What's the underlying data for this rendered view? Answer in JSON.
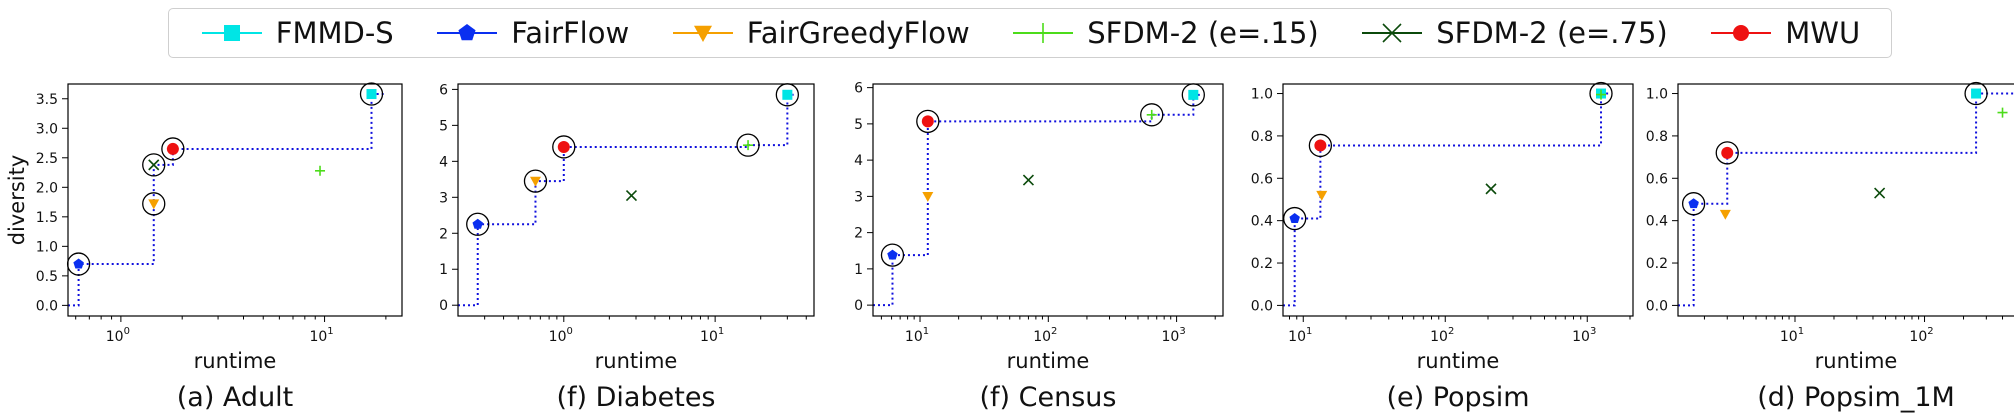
{
  "legend": {
    "items": [
      {
        "label": "FMMD-S",
        "color": "#00e5e5",
        "marker": "square",
        "icon": "cyan-square-marker-icon"
      },
      {
        "label": "FairFlow",
        "color": "#0a2ff0",
        "marker": "pentagon",
        "icon": "blue-pentagon-marker-icon"
      },
      {
        "label": "FairGreedyFlow",
        "color": "#f5a000",
        "marker": "triangle-down",
        "icon": "orange-triangle-marker-icon"
      },
      {
        "label": "SFDM-2 (e=.15)",
        "color": "#4cdc1a",
        "marker": "plus",
        "icon": "green-plus-marker-icon"
      },
      {
        "label": "SFDM-2 (e=.75)",
        "color": "#0b4a0b",
        "marker": "x",
        "icon": "dark-green-x-marker-icon"
      },
      {
        "label": "MWU",
        "color": "#ee1111",
        "marker": "circle",
        "icon": "red-circle-marker-icon"
      }
    ]
  },
  "colors": {
    "pareto_line": "#1010dd",
    "highlight_ring": "#000000"
  },
  "chart_data": [
    {
      "type": "scatter",
      "title": "(a) Adult",
      "xlabel": "runtime",
      "ylabel": "diversity",
      "xscale": "log",
      "xlim": [
        0.55,
        24
      ],
      "ylim": [
        -0.18,
        3.75
      ],
      "xticks": [
        {
          "v": 1,
          "label": "10^0"
        },
        {
          "v": 10,
          "label": "10^1"
        }
      ],
      "yticks": [
        {
          "v": 0,
          "label": "0.0"
        },
        {
          "v": 0.5,
          "label": "0.5"
        },
        {
          "v": 1.0,
          "label": "1.0"
        },
        {
          "v": 1.5,
          "label": "1.5"
        },
        {
          "v": 2.0,
          "label": "2.0"
        },
        {
          "v": 2.5,
          "label": "2.5"
        },
        {
          "v": 3.0,
          "label": "3.0"
        },
        {
          "v": 3.5,
          "label": "3.5"
        }
      ],
      "series": [
        {
          "name": "FMMD-S",
          "points": [
            [
              17,
              3.58
            ]
          ]
        },
        {
          "name": "FairFlow",
          "points": [
            [
              0.62,
              0.7
            ]
          ]
        },
        {
          "name": "FairGreedyFlow",
          "points": [
            [
              1.45,
              1.72
            ]
          ]
        },
        {
          "name": "SFDM-2 (e=.15)",
          "points": [
            [
              9.5,
              2.28
            ]
          ]
        },
        {
          "name": "SFDM-2 (e=.75)",
          "points": [
            [
              1.45,
              2.38
            ]
          ]
        },
        {
          "name": "MWU",
          "points": [
            [
              1.8,
              2.65
            ]
          ]
        }
      ],
      "pareto": [
        [
          0.55,
          0
        ],
        [
          0.62,
          0
        ],
        [
          0.62,
          0.7
        ],
        [
          1.45,
          0.7
        ],
        [
          1.45,
          1.72
        ],
        [
          1.45,
          2.38
        ],
        [
          1.8,
          2.38
        ],
        [
          1.8,
          2.65
        ],
        [
          17,
          2.65
        ],
        [
          17,
          3.58
        ],
        [
          19.5,
          3.58
        ]
      ],
      "circled": [
        [
          0.62,
          0.7
        ],
        [
          1.45,
          1.72
        ],
        [
          1.45,
          2.38
        ],
        [
          1.8,
          2.65
        ],
        [
          17,
          3.58
        ]
      ]
    },
    {
      "type": "scatter",
      "title": "(f) Diabetes",
      "xlabel": "runtime",
      "ylabel": "",
      "xscale": "log",
      "xlim": [
        0.2,
        45
      ],
      "ylim": [
        -0.3,
        6.15
      ],
      "xticks": [
        {
          "v": 1,
          "label": "10^0"
        },
        {
          "v": 10,
          "label": "10^1"
        }
      ],
      "yticks": [
        {
          "v": 0,
          "label": "0"
        },
        {
          "v": 1,
          "label": "1"
        },
        {
          "v": 2,
          "label": "2"
        },
        {
          "v": 3,
          "label": "3"
        },
        {
          "v": 4,
          "label": "4"
        },
        {
          "v": 5,
          "label": "5"
        },
        {
          "v": 6,
          "label": "6"
        }
      ],
      "series": [
        {
          "name": "FMMD-S",
          "points": [
            [
              30,
              5.85
            ]
          ]
        },
        {
          "name": "FairFlow",
          "points": [
            [
              0.27,
              2.25
            ]
          ]
        },
        {
          "name": "FairGreedyFlow",
          "points": [
            [
              0.65,
              3.45
            ]
          ]
        },
        {
          "name": "SFDM-2 (e=.15)",
          "points": [
            [
              16.5,
              4.45
            ]
          ]
        },
        {
          "name": "SFDM-2 (e=.75)",
          "points": [
            [
              2.8,
              3.05
            ]
          ]
        },
        {
          "name": "MWU",
          "points": [
            [
              1.0,
              4.4
            ]
          ]
        }
      ],
      "pareto": [
        [
          0.2,
          0
        ],
        [
          0.27,
          0
        ],
        [
          0.27,
          2.25
        ],
        [
          0.65,
          2.25
        ],
        [
          0.65,
          3.45
        ],
        [
          1.0,
          3.45
        ],
        [
          1.0,
          4.4
        ],
        [
          16.5,
          4.4
        ],
        [
          16.5,
          4.45
        ],
        [
          30,
          4.45
        ],
        [
          30,
          5.85
        ],
        [
          33,
          5.85
        ]
      ],
      "circled": [
        [
          0.27,
          2.25
        ],
        [
          0.65,
          3.45
        ],
        [
          1.0,
          4.4
        ],
        [
          16.5,
          4.45
        ],
        [
          30,
          5.85
        ]
      ]
    },
    {
      "type": "scatter",
      "title": "(f) Census",
      "xlabel": "runtime",
      "ylabel": "",
      "xscale": "log",
      "xlim": [
        4.3,
        2300
      ],
      "ylim": [
        -0.3,
        6.1
      ],
      "xticks": [
        {
          "v": 10,
          "label": "10^1"
        },
        {
          "v": 100,
          "label": "10^2"
        },
        {
          "v": 1000,
          "label": "10^3"
        }
      ],
      "yticks": [
        {
          "v": 0,
          "label": "0"
        },
        {
          "v": 1,
          "label": "1"
        },
        {
          "v": 2,
          "label": "2"
        },
        {
          "v": 3,
          "label": "3"
        },
        {
          "v": 4,
          "label": "4"
        },
        {
          "v": 5,
          "label": "5"
        },
        {
          "v": 6,
          "label": "6"
        }
      ],
      "series": [
        {
          "name": "FMMD-S",
          "points": [
            [
              1350,
              5.8
            ]
          ]
        },
        {
          "name": "FairFlow",
          "points": [
            [
              6.1,
              1.38
            ]
          ]
        },
        {
          "name": "FairGreedyFlow",
          "points": [
            [
              11.5,
              3.0
            ]
          ]
        },
        {
          "name": "SFDM-2 (e=.15)",
          "points": [
            [
              640,
              5.25
            ]
          ]
        },
        {
          "name": "SFDM-2 (e=.75)",
          "points": [
            [
              70,
              3.45
            ]
          ]
        },
        {
          "name": "MWU",
          "points": [
            [
              11.5,
              5.07
            ]
          ]
        }
      ],
      "pareto": [
        [
          4.3,
          0
        ],
        [
          6.1,
          0
        ],
        [
          6.1,
          1.38
        ],
        [
          11.5,
          1.38
        ],
        [
          11.5,
          5.07
        ],
        [
          640,
          5.07
        ],
        [
          640,
          5.25
        ],
        [
          1350,
          5.25
        ],
        [
          1350,
          5.8
        ],
        [
          1600,
          5.8
        ]
      ],
      "circled": [
        [
          6.1,
          1.38
        ],
        [
          11.5,
          5.07
        ],
        [
          640,
          5.25
        ],
        [
          1350,
          5.8
        ]
      ]
    },
    {
      "type": "scatter",
      "title": "(e) Popsim",
      "xlabel": "runtime",
      "ylabel": "",
      "xscale": "log",
      "xlim": [
        7.2,
        2100
      ],
      "ylim": [
        -0.05,
        1.045
      ],
      "xticks": [
        {
          "v": 10,
          "label": "10^1"
        },
        {
          "v": 100,
          "label": "10^2"
        },
        {
          "v": 1000,
          "label": "10^3"
        }
      ],
      "yticks": [
        {
          "v": 0,
          "label": "0.0"
        },
        {
          "v": 0.2,
          "label": "0.2"
        },
        {
          "v": 0.4,
          "label": "0.4"
        },
        {
          "v": 0.6,
          "label": "0.6"
        },
        {
          "v": 0.8,
          "label": "0.8"
        },
        {
          "v": 1.0,
          "label": "1.0"
        }
      ],
      "series": [
        {
          "name": "FMMD-S",
          "points": [
            [
              1250,
              1.0
            ]
          ]
        },
        {
          "name": "FairFlow",
          "points": [
            [
              8.7,
              0.41
            ]
          ]
        },
        {
          "name": "FairGreedyFlow",
          "points": [
            [
              13.5,
              0.52
            ]
          ]
        },
        {
          "name": "SFDM-2 (e=.15)",
          "points": [
            [
              1250,
              0.995
            ]
          ]
        },
        {
          "name": "SFDM-2 (e=.75)",
          "points": [
            [
              210,
              0.55
            ]
          ]
        },
        {
          "name": "MWU",
          "points": [
            [
              13.2,
              0.755
            ]
          ]
        }
      ],
      "pareto": [
        [
          7.2,
          0
        ],
        [
          8.7,
          0
        ],
        [
          8.7,
          0.41
        ],
        [
          13.2,
          0.41
        ],
        [
          13.2,
          0.755
        ],
        [
          1250,
          0.755
        ],
        [
          1250,
          1.0
        ],
        [
          1450,
          1.0
        ]
      ],
      "circled": [
        [
          8.7,
          0.41
        ],
        [
          13.2,
          0.755
        ],
        [
          1250,
          1.0
        ]
      ]
    },
    {
      "type": "scatter",
      "title": "(d) Popsim_1M",
      "xlabel": "runtime",
      "ylabel": "",
      "xscale": "log",
      "xlim": [
        1.25,
        700
      ],
      "ylim": [
        -0.05,
        1.045
      ],
      "xticks": [
        {
          "v": 10,
          "label": "10^1"
        },
        {
          "v": 100,
          "label": "10^2"
        }
      ],
      "yticks": [
        {
          "v": 0,
          "label": "0.0"
        },
        {
          "v": 0.2,
          "label": "0.2"
        },
        {
          "v": 0.4,
          "label": "0.4"
        },
        {
          "v": 0.6,
          "label": "0.6"
        },
        {
          "v": 0.8,
          "label": "0.8"
        },
        {
          "v": 1.0,
          "label": "1.0"
        }
      ],
      "series": [
        {
          "name": "FMMD-S",
          "points": [
            [
              250,
              1.0
            ]
          ]
        },
        {
          "name": "FairFlow",
          "points": [
            [
              1.65,
              0.48
            ]
          ]
        },
        {
          "name": "FairGreedyFlow",
          "points": [
            [
              2.9,
              0.43
            ]
          ]
        },
        {
          "name": "SFDM-2 (e=.15)",
          "points": [
            [
              400,
              0.91
            ]
          ]
        },
        {
          "name": "SFDM-2 (e=.75)",
          "points": [
            [
              45,
              0.53
            ]
          ]
        },
        {
          "name": "MWU",
          "points": [
            [
              3.0,
              0.72
            ]
          ]
        }
      ],
      "pareto": [
        [
          1.25,
          0
        ],
        [
          1.65,
          0
        ],
        [
          1.65,
          0.48
        ],
        [
          3.0,
          0.48
        ],
        [
          3.0,
          0.72
        ],
        [
          250,
          0.72
        ],
        [
          250,
          1.0
        ],
        [
          520,
          1.0
        ]
      ],
      "circled": [
        [
          1.65,
          0.48
        ],
        [
          3.0,
          0.72
        ],
        [
          250,
          1.0
        ]
      ]
    }
  ]
}
